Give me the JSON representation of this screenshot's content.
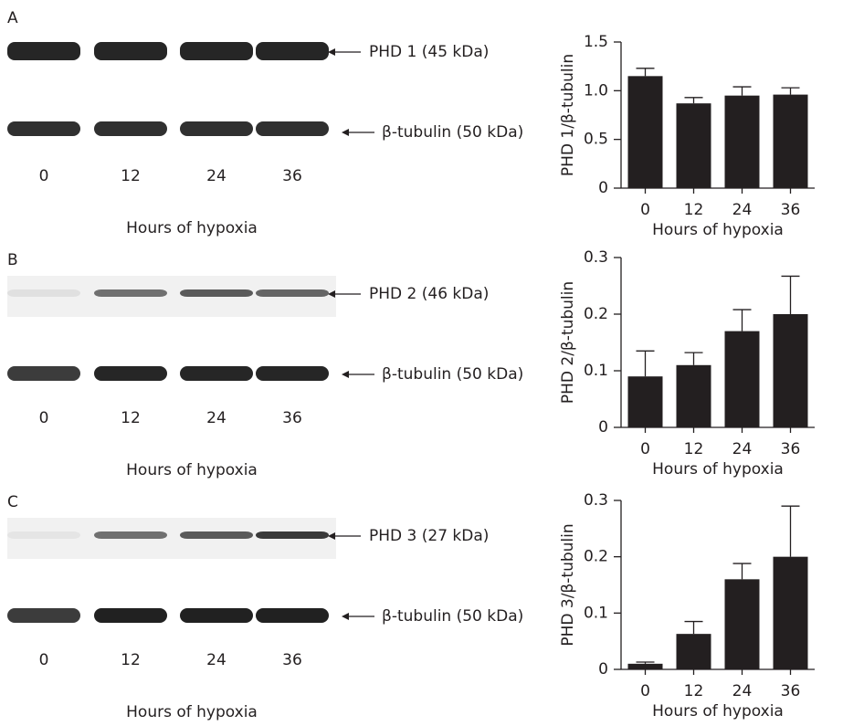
{
  "blots": [
    {
      "label": "A",
      "target": "PHD 1 (45 kDa)",
      "control": "β-tubulin (50 kDa)",
      "lanes": [
        "0",
        "12",
        "24",
        "36"
      ],
      "xlabel": "Hours of hypoxia"
    },
    {
      "label": "B",
      "target": "PHD 2 (46 kDa)",
      "control": "β-tubulin (50 kDa)",
      "lanes": [
        "0",
        "12",
        "24",
        "36"
      ],
      "xlabel": "Hours of hypoxia"
    },
    {
      "label": "C",
      "target": "PHD 3 (27 kDa)",
      "control": "β-tubulin (50 kDa)",
      "lanes": [
        "0",
        "12",
        "24",
        "36"
      ],
      "xlabel": "Hours of hypoxia"
    }
  ],
  "chart_data": [
    {
      "type": "bar",
      "ylabel": "PHD 1/β-tubulin",
      "xlabel": "Hours of hypoxia",
      "categories": [
        "0",
        "12",
        "24",
        "36"
      ],
      "values": [
        1.15,
        0.87,
        0.95,
        0.96
      ],
      "errors": [
        0.08,
        0.06,
        0.09,
        0.07
      ],
      "color": "#231f20",
      "ylim": [
        0,
        1.5
      ],
      "yticks": [
        0,
        0.5,
        {
          "value": 1,
          "label": "1.0"
        },
        1.5
      ]
    },
    {
      "type": "bar",
      "ylabel": "PHD 2/β-tubulin",
      "xlabel": "Hours of hypoxia",
      "categories": [
        "0",
        "12",
        "24",
        "36"
      ],
      "values": [
        0.09,
        0.11,
        0.17,
        0.2
      ],
      "errors": [
        0.045,
        0.022,
        0.038,
        0.067
      ],
      "color": "#231f20",
      "ylim": [
        0,
        0.3
      ],
      "yticks": [
        0,
        0.1,
        0.2,
        0.3
      ]
    },
    {
      "type": "bar",
      "ylabel": "PHD 3/β-tubulin",
      "xlabel": "Hours of hypoxia",
      "categories": [
        "0",
        "12",
        "24",
        "36"
      ],
      "values": [
        0.01,
        0.063,
        0.16,
        0.2
      ],
      "errors": [
        0.003,
        0.022,
        0.028,
        0.09
      ],
      "color": "#231f20",
      "ylim": [
        0,
        0.3
      ],
      "yticks": [
        0,
        0.1,
        0.2,
        0.3
      ]
    }
  ]
}
